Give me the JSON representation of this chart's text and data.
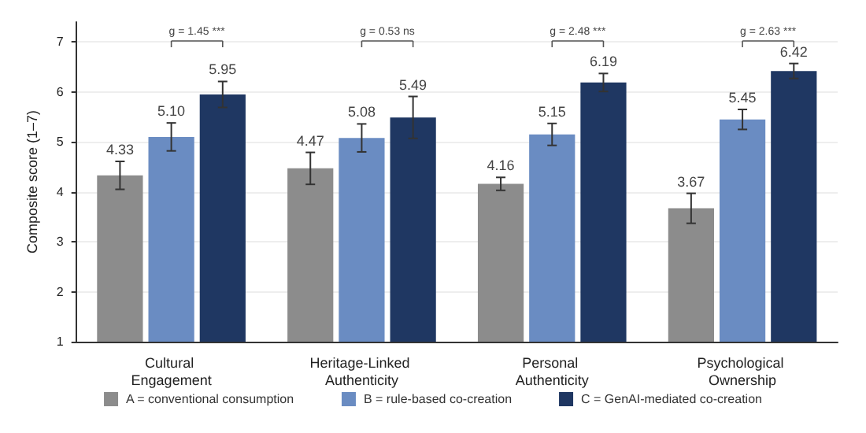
{
  "chart_data": {
    "type": "bar",
    "ylabel": "Composite score (1–7)",
    "categories": [
      "Cultural Engagement",
      "Heritage-Linked Authenticity",
      "Personal Authenticity",
      "Psychological Ownership"
    ],
    "series": [
      {
        "name": "A = conventional consumption",
        "color": "#8c8c8c",
        "values": [
          4.33,
          4.47,
          4.16,
          3.67
        ],
        "value_labels": [
          "4.33",
          "4.47",
          "4.16",
          "3.67"
        ],
        "errors": [
          0.28,
          0.32,
          0.13,
          0.3
        ]
      },
      {
        "name": "B = rule-based co-creation",
        "color": "#6a8cc2",
        "values": [
          5.1,
          5.08,
          5.15,
          5.45
        ],
        "value_labels": [
          "5.10",
          "5.08",
          "5.15",
          "5.45"
        ],
        "errors": [
          0.28,
          0.28,
          0.22,
          0.2
        ]
      },
      {
        "name": "C = GenAI-mediated co-creation",
        "color": "#1f3762",
        "values": [
          5.95,
          5.49,
          6.19,
          6.42
        ],
        "value_labels": [
          "5.95",
          "5.49",
          "6.19",
          "6.42"
        ],
        "errors": [
          0.26,
          0.42,
          0.18,
          0.15
        ]
      }
    ],
    "ylim": [
      1,
      7.4
    ],
    "yticks": [
      1,
      2,
      3,
      4,
      5,
      6,
      7
    ],
    "grid": "y",
    "legend": "bottom",
    "annotations": [
      "g = 1.45 ***",
      "g = 0.53 ns",
      "g = 2.48 ***",
      "g = 2.63 ***"
    ]
  }
}
